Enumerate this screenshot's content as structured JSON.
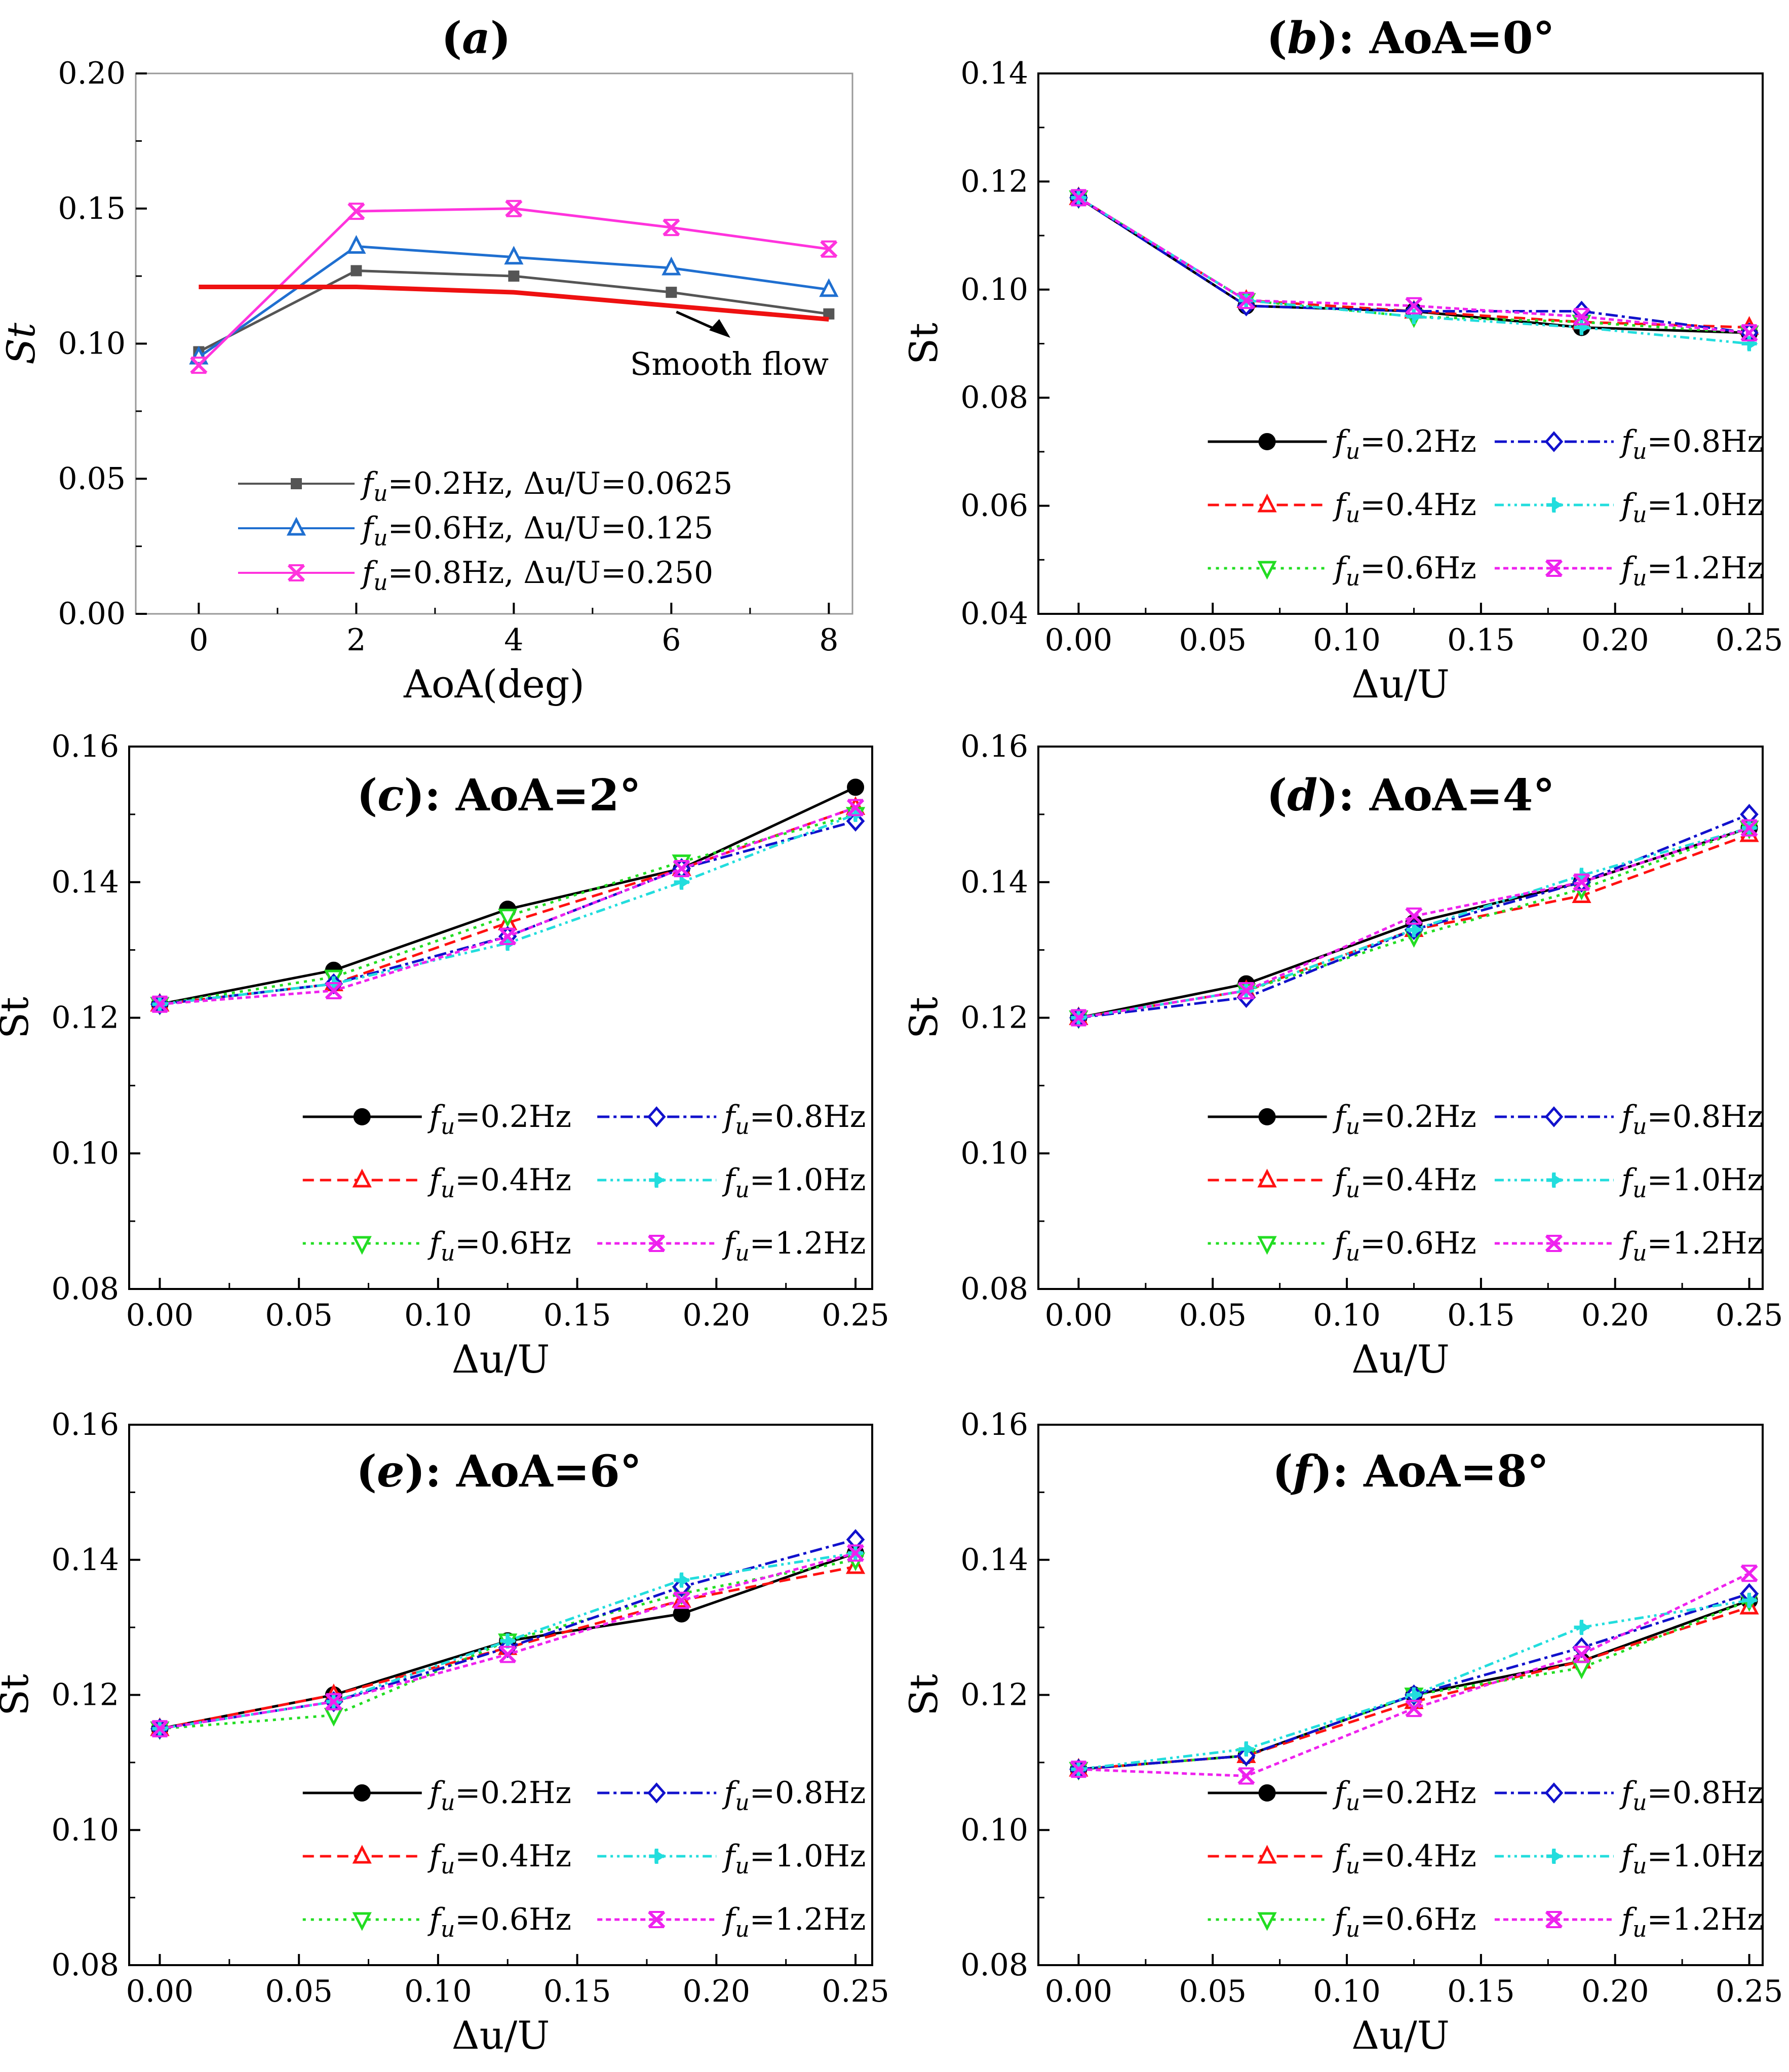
{
  "chart_data": [
    {
      "id": "a",
      "type": "line",
      "title": "(a)",
      "xlabel": "AoA(deg)",
      "ylabel": "St",
      "xlim": [
        -0.8,
        8.3
      ],
      "ylim": [
        0,
        0.2
      ],
      "xticks": [
        0,
        2,
        4,
        6,
        8
      ],
      "yticks": [
        0.0,
        0.05,
        0.1,
        0.15,
        0.2
      ],
      "xtick_labels": [
        "0",
        "2",
        "4",
        "6",
        "8"
      ],
      "ytick_labels": [
        "0.00",
        "0.05",
        "0.10",
        "0.15",
        "0.20"
      ],
      "legend_position": "bottom-center",
      "annotation": "Smooth flow",
      "series": [
        {
          "name": "fu=0.2Hz, Δu/U=0.0625",
          "legend_label": "f_u=0.2Hz, Δu/U=0.0625",
          "color": "#555555",
          "marker": "square",
          "dash": "",
          "x": [
            0,
            2,
            4,
            6,
            8
          ],
          "values": [
            0.097,
            0.127,
            0.125,
            0.119,
            0.111
          ]
        },
        {
          "name": "fu=0.6Hz, Δu/U=0.125",
          "legend_label": "f_u=0.6Hz, Δu/U=0.125",
          "color": "#1f6fd0",
          "marker": "triangle-up",
          "dash": "",
          "x": [
            0,
            2,
            4,
            6,
            8
          ],
          "values": [
            0.095,
            0.136,
            0.132,
            0.128,
            0.12
          ]
        },
        {
          "name": "fu=0.8Hz, Δu/U=0.250",
          "legend_label": "f_u=0.8Hz, Δu/U=0.250",
          "color": "#ff33dd",
          "marker": "x-star",
          "dash": "",
          "x": [
            0,
            2,
            4,
            6,
            8
          ],
          "values": [
            0.092,
            0.149,
            0.15,
            0.143,
            0.135
          ]
        },
        {
          "name": "Smooth flow",
          "legend_label": "",
          "color": "#ee1111",
          "marker": "none",
          "dash": "",
          "thick": true,
          "x": [
            0,
            2,
            4,
            6,
            8
          ],
          "values": [
            0.121,
            0.121,
            0.119,
            0.114,
            0.109
          ]
        }
      ]
    },
    {
      "id": "b",
      "type": "line",
      "title": "(b): AoA=0°",
      "xlabel": "Δu/U",
      "ylabel": "St",
      "xlim": [
        -0.015,
        0.255
      ],
      "ylim": [
        0.04,
        0.14
      ],
      "xticks": [
        0,
        0.05,
        0.1,
        0.15,
        0.2,
        0.25
      ],
      "yticks": [
        0.04,
        0.06,
        0.08,
        0.1,
        0.12,
        0.14
      ],
      "xtick_labels": [
        "0.00",
        "0.05",
        "0.10",
        "0.15",
        "0.20",
        "0.25"
      ],
      "ytick_labels": [
        "0.04",
        "0.06",
        "0.08",
        "0.10",
        "0.12",
        "0.14"
      ],
      "legend_position": "bottom-right",
      "x": [
        0,
        0.0625,
        0.125,
        0.1875,
        0.25
      ],
      "series": [
        {
          "name": "fu=0.2Hz",
          "legend_label": "f_u=0.2Hz",
          "color": "#000000",
          "marker": "circle",
          "dash": "",
          "values": [
            0.117,
            0.097,
            0.096,
            0.093,
            0.092
          ]
        },
        {
          "name": "fu=0.4Hz",
          "legend_label": "f_u=0.4Hz",
          "color": "#ff1111",
          "marker": "triangle-up",
          "dash": "22,12",
          "values": [
            0.117,
            0.098,
            0.096,
            0.094,
            0.093
          ]
        },
        {
          "name": "fu=0.6Hz",
          "legend_label": "f_u=0.6Hz",
          "color": "#22dd22",
          "marker": "triangle-down",
          "dash": "6,10",
          "values": [
            0.117,
            0.098,
            0.095,
            0.094,
            0.092
          ]
        },
        {
          "name": "fu=0.8Hz",
          "legend_label": "f_u=0.8Hz",
          "color": "#1111cc",
          "marker": "diamond",
          "dash": "24,8,6,8",
          "values": [
            0.117,
            0.097,
            0.096,
            0.096,
            0.092
          ]
        },
        {
          "name": "fu=1.0Hz",
          "legend_label": "f_u=1.0Hz",
          "color": "#22dddd",
          "marker": "plus-tri",
          "dash": "18,8,5,8,5,8",
          "values": [
            0.117,
            0.098,
            0.095,
            0.093,
            0.09
          ]
        },
        {
          "name": "fu=1.2Hz",
          "legend_label": "f_u=1.2Hz",
          "color": "#ee22ee",
          "marker": "x-star",
          "dash": "10,7",
          "values": [
            0.117,
            0.098,
            0.097,
            0.095,
            0.092
          ]
        }
      ]
    },
    {
      "id": "c",
      "type": "line",
      "title": "(c): AoA=2°",
      "xlabel": "Δu/U",
      "ylabel": "St",
      "xlim": [
        -0.011,
        0.256
      ],
      "ylim": [
        0.08,
        0.16
      ],
      "xticks": [
        0,
        0.05,
        0.1,
        0.15,
        0.2,
        0.25
      ],
      "yticks": [
        0.08,
        0.1,
        0.12,
        0.14,
        0.16
      ],
      "xtick_labels": [
        "0.00",
        "0.05",
        "0.10",
        "0.15",
        "0.20",
        "0.25"
      ],
      "ytick_labels": [
        "0.08",
        "0.10",
        "0.12",
        "0.14",
        "0.16"
      ],
      "legend_position": "bottom-right",
      "x": [
        0,
        0.0625,
        0.125,
        0.1875,
        0.25
      ],
      "series": [
        {
          "name": "fu=0.2Hz",
          "legend_label": "f_u=0.2Hz",
          "color": "#000000",
          "marker": "circle",
          "dash": "",
          "values": [
            0.122,
            0.127,
            0.136,
            0.142,
            0.154
          ]
        },
        {
          "name": "fu=0.4Hz",
          "legend_label": "f_u=0.4Hz",
          "color": "#ff1111",
          "marker": "triangle-up",
          "dash": "22,12",
          "values": [
            0.122,
            0.125,
            0.134,
            0.142,
            0.151
          ]
        },
        {
          "name": "fu=0.6Hz",
          "legend_label": "f_u=0.6Hz",
          "color": "#22dd22",
          "marker": "triangle-down",
          "dash": "6,10",
          "values": [
            0.122,
            0.126,
            0.135,
            0.143,
            0.15
          ]
        },
        {
          "name": "fu=0.8Hz",
          "legend_label": "f_u=0.8Hz",
          "color": "#1111cc",
          "marker": "diamond",
          "dash": "24,8,6,8",
          "values": [
            0.122,
            0.125,
            0.132,
            0.142,
            0.149
          ]
        },
        {
          "name": "fu=1.0Hz",
          "legend_label": "f_u=1.0Hz",
          "color": "#22dddd",
          "marker": "plus-tri",
          "dash": "18,8,5,8,5,8",
          "values": [
            0.122,
            0.125,
            0.131,
            0.14,
            0.15
          ]
        },
        {
          "name": "fu=1.2Hz",
          "legend_label": "f_u=1.2Hz",
          "color": "#ee22ee",
          "marker": "x-star",
          "dash": "10,7",
          "values": [
            0.122,
            0.124,
            0.132,
            0.142,
            0.151
          ]
        }
      ]
    },
    {
      "id": "d",
      "type": "line",
      "title": "(d): AoA=4°",
      "xlabel": "Δu/U",
      "ylabel": "St",
      "xlim": [
        -0.015,
        0.255
      ],
      "ylim": [
        0.08,
        0.16
      ],
      "xticks": [
        0,
        0.05,
        0.1,
        0.15,
        0.2,
        0.25
      ],
      "yticks": [
        0.08,
        0.1,
        0.12,
        0.14,
        0.16
      ],
      "xtick_labels": [
        "0.00",
        "0.05",
        "0.10",
        "0.15",
        "0.20",
        "0.25"
      ],
      "ytick_labels": [
        "0.08",
        "0.10",
        "0.12",
        "0.14",
        "0.16"
      ],
      "legend_position": "bottom-right",
      "x": [
        0,
        0.0625,
        0.125,
        0.1875,
        0.25
      ],
      "series": [
        {
          "name": "fu=0.2Hz",
          "legend_label": "f_u=0.2Hz",
          "color": "#000000",
          "marker": "circle",
          "dash": "",
          "values": [
            0.12,
            0.125,
            0.134,
            0.14,
            0.148
          ]
        },
        {
          "name": "fu=0.4Hz",
          "legend_label": "f_u=0.4Hz",
          "color": "#ff1111",
          "marker": "triangle-up",
          "dash": "22,12",
          "values": [
            0.12,
            0.124,
            0.133,
            0.138,
            0.147
          ]
        },
        {
          "name": "fu=0.6Hz",
          "legend_label": "f_u=0.6Hz",
          "color": "#22dd22",
          "marker": "triangle-down",
          "dash": "6,10",
          "values": [
            0.12,
            0.124,
            0.132,
            0.139,
            0.148
          ]
        },
        {
          "name": "fu=0.8Hz",
          "legend_label": "f_u=0.8Hz",
          "color": "#1111cc",
          "marker": "diamond",
          "dash": "24,8,6,8",
          "values": [
            0.12,
            0.123,
            0.133,
            0.14,
            0.15
          ]
        },
        {
          "name": "fu=1.0Hz",
          "legend_label": "f_u=1.0Hz",
          "color": "#22dddd",
          "marker": "plus-tri",
          "dash": "18,8,5,8,5,8",
          "values": [
            0.12,
            0.124,
            0.133,
            0.141,
            0.148
          ]
        },
        {
          "name": "fu=1.2Hz",
          "legend_label": "f_u=1.2Hz",
          "color": "#ee22ee",
          "marker": "x-star",
          "dash": "10,7",
          "values": [
            0.12,
            0.124,
            0.135,
            0.14,
            0.148
          ]
        }
      ]
    },
    {
      "id": "e",
      "type": "line",
      "title": "(e): AoA=6°",
      "xlabel": "Δu/U",
      "ylabel": "St",
      "xlim": [
        -0.011,
        0.256
      ],
      "ylim": [
        0.08,
        0.16
      ],
      "xticks": [
        0,
        0.05,
        0.1,
        0.15,
        0.2,
        0.25
      ],
      "yticks": [
        0.08,
        0.1,
        0.12,
        0.14,
        0.16
      ],
      "xtick_labels": [
        "0.00",
        "0.05",
        "0.10",
        "0.15",
        "0.20",
        "0.25"
      ],
      "ytick_labels": [
        "0.08",
        "0.10",
        "0.12",
        "0.14",
        "0.16"
      ],
      "legend_position": "bottom-right",
      "x": [
        0,
        0.0625,
        0.125,
        0.1875,
        0.25
      ],
      "series": [
        {
          "name": "fu=0.2Hz",
          "legend_label": "f_u=0.2Hz",
          "color": "#000000",
          "marker": "circle",
          "dash": "",
          "values": [
            0.115,
            0.12,
            0.128,
            0.132,
            0.141
          ]
        },
        {
          "name": "fu=0.4Hz",
          "legend_label": "f_u=0.4Hz",
          "color": "#ff1111",
          "marker": "triangle-up",
          "dash": "22,12",
          "values": [
            0.115,
            0.12,
            0.127,
            0.134,
            0.139
          ]
        },
        {
          "name": "fu=0.6Hz",
          "legend_label": "f_u=0.6Hz",
          "color": "#22dd22",
          "marker": "triangle-down",
          "dash": "6,10",
          "values": [
            0.115,
            0.117,
            0.128,
            0.135,
            0.14
          ]
        },
        {
          "name": "fu=0.8Hz",
          "legend_label": "f_u=0.8Hz",
          "color": "#1111cc",
          "marker": "diamond",
          "dash": "24,8,6,8",
          "values": [
            0.115,
            0.119,
            0.127,
            0.136,
            0.143
          ]
        },
        {
          "name": "fu=1.0Hz",
          "legend_label": "f_u=1.0Hz",
          "color": "#22dddd",
          "marker": "plus-tri",
          "dash": "18,8,5,8,5,8",
          "values": [
            0.115,
            0.119,
            0.128,
            0.137,
            0.141
          ]
        },
        {
          "name": "fu=1.2Hz",
          "legend_label": "f_u=1.2Hz",
          "color": "#ee22ee",
          "marker": "x-star",
          "dash": "10,7",
          "values": [
            0.115,
            0.119,
            0.126,
            0.134,
            0.141
          ]
        }
      ]
    },
    {
      "id": "f",
      "type": "line",
      "title": "(f): AoA=8°",
      "xlabel": "Δu/U",
      "ylabel": "St",
      "xlim": [
        -0.015,
        0.255
      ],
      "ylim": [
        0.08,
        0.16
      ],
      "xticks": [
        0,
        0.05,
        0.1,
        0.15,
        0.2,
        0.25
      ],
      "yticks": [
        0.08,
        0.1,
        0.12,
        0.14,
        0.16
      ],
      "xtick_labels": [
        "0.00",
        "0.05",
        "0.10",
        "0.15",
        "0.20",
        "0.25"
      ],
      "ytick_labels": [
        "0.08",
        "0.10",
        "0.12",
        "0.14",
        "0.16"
      ],
      "legend_position": "bottom-right",
      "x": [
        0,
        0.0625,
        0.125,
        0.1875,
        0.25
      ],
      "series": [
        {
          "name": "fu=0.2Hz",
          "legend_label": "f_u=0.2Hz",
          "color": "#000000",
          "marker": "circle",
          "dash": "",
          "values": [
            0.109,
            0.111,
            0.12,
            0.125,
            0.134
          ]
        },
        {
          "name": "fu=0.4Hz",
          "legend_label": "f_u=0.4Hz",
          "color": "#ff1111",
          "marker": "triangle-up",
          "dash": "22,12",
          "values": [
            0.109,
            0.111,
            0.119,
            0.125,
            0.133
          ]
        },
        {
          "name": "fu=0.6Hz",
          "legend_label": "f_u=0.6Hz",
          "color": "#22dd22",
          "marker": "triangle-down",
          "dash": "6,10",
          "values": [
            0.109,
            0.111,
            0.12,
            0.124,
            0.134
          ]
        },
        {
          "name": "fu=0.8Hz",
          "legend_label": "f_u=0.8Hz",
          "color": "#1111cc",
          "marker": "diamond",
          "dash": "24,8,6,8",
          "values": [
            0.109,
            0.111,
            0.12,
            0.127,
            0.135
          ]
        },
        {
          "name": "fu=1.0Hz",
          "legend_label": "f_u=1.0Hz",
          "color": "#22dddd",
          "marker": "plus-tri",
          "dash": "18,8,5,8,5,8",
          "values": [
            0.109,
            0.112,
            0.12,
            0.13,
            0.134
          ]
        },
        {
          "name": "fu=1.2Hz",
          "legend_label": "f_u=1.2Hz",
          "color": "#ee22ee",
          "marker": "x-star",
          "dash": "10,7",
          "values": [
            0.109,
            0.108,
            0.118,
            0.126,
            0.138
          ]
        }
      ]
    }
  ]
}
